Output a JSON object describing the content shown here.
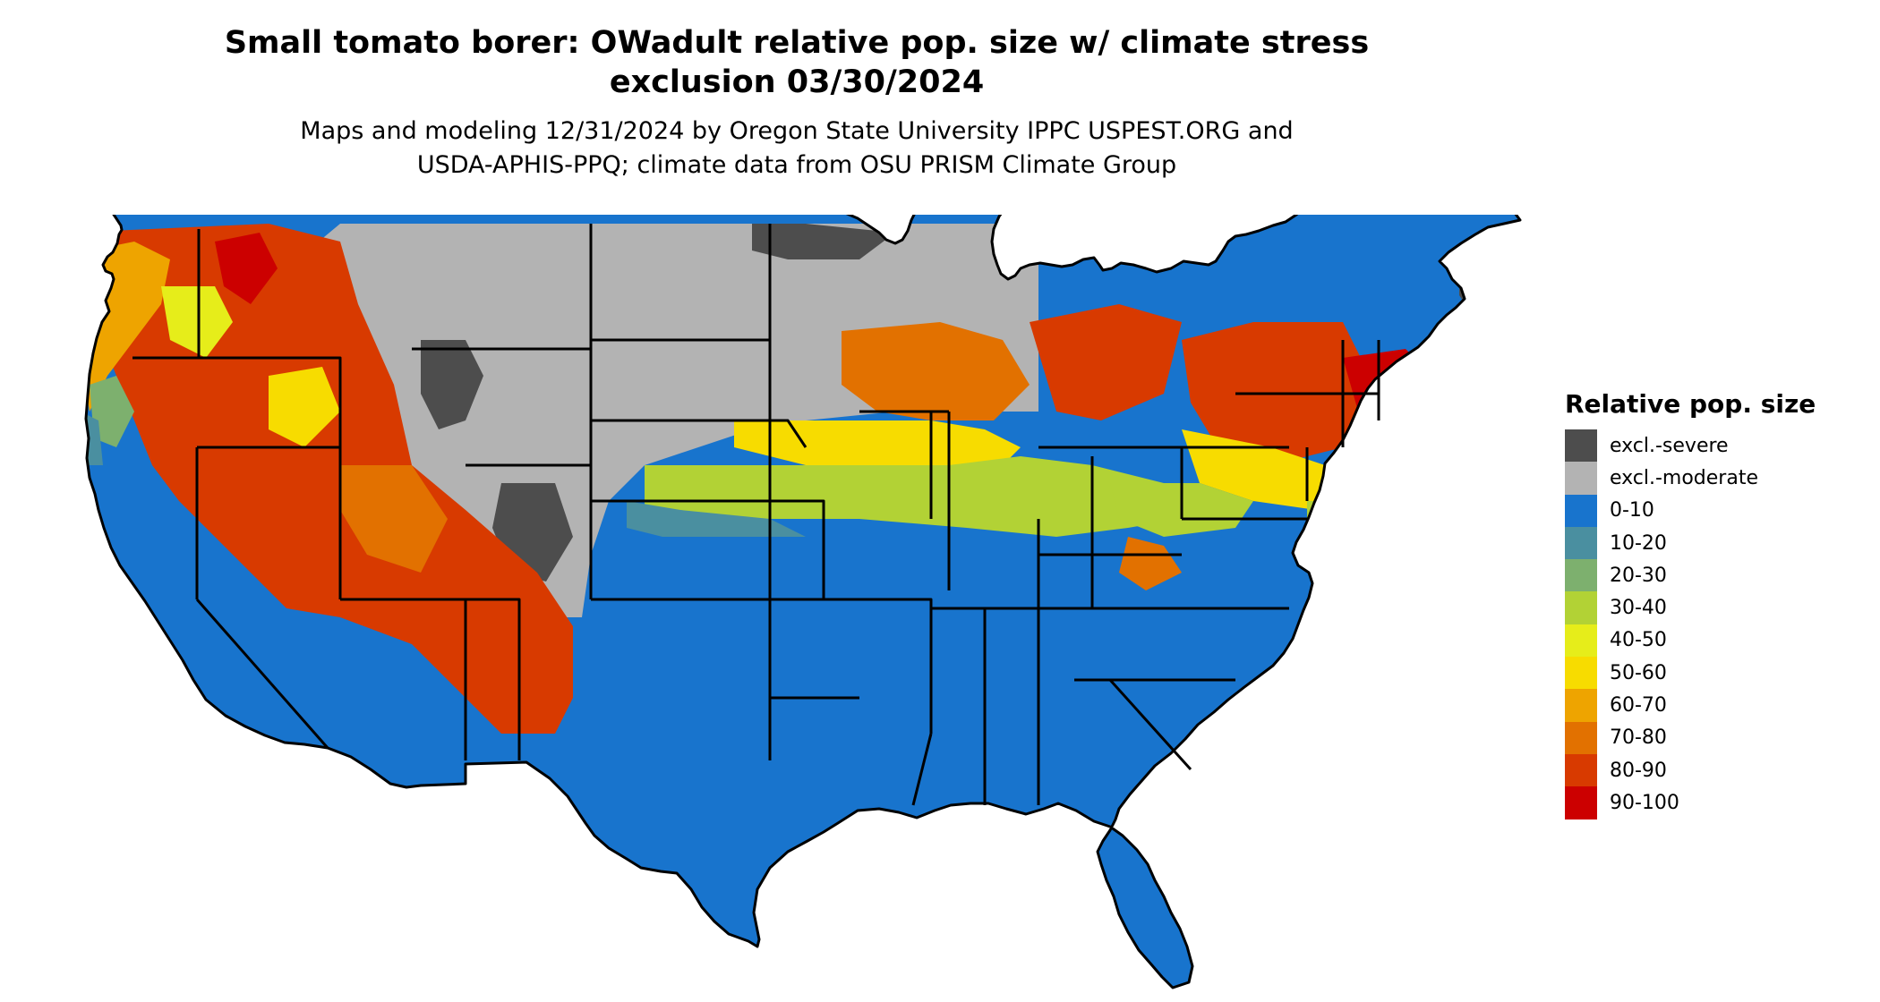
{
  "title": {
    "line1": "Small tomato borer: OWadult relative pop. size w/ climate stress",
    "line2": "exclusion 03/30/2024"
  },
  "subtitle": {
    "line1": "Maps and modeling 12/31/2024 by Oregon State University IPPC USPEST.ORG and",
    "line2": "USDA-APHIS-PPQ; climate data from OSU PRISM Climate Group"
  },
  "legend": {
    "title": "Relative pop. size",
    "items": [
      {
        "label": "excl.-severe",
        "color": "#4d4d4d"
      },
      {
        "label": "excl.-moderate",
        "color": "#b3b3b3"
      },
      {
        "label": "0-10",
        "color": "#1874cd"
      },
      {
        "label": "10-20",
        "color": "#4a8fa0"
      },
      {
        "label": "20-30",
        "color": "#7db06e"
      },
      {
        "label": "30-40",
        "color": "#b2d235"
      },
      {
        "label": "40-50",
        "color": "#e6ed1a"
      },
      {
        "label": "50-60",
        "color": "#f7dc00"
      },
      {
        "label": "60-70",
        "color": "#eea400"
      },
      {
        "label": "70-80",
        "color": "#e27100"
      },
      {
        "label": "80-90",
        "color": "#d83a00"
      },
      {
        "label": "90-100",
        "color": "#cc0000"
      }
    ]
  }
}
